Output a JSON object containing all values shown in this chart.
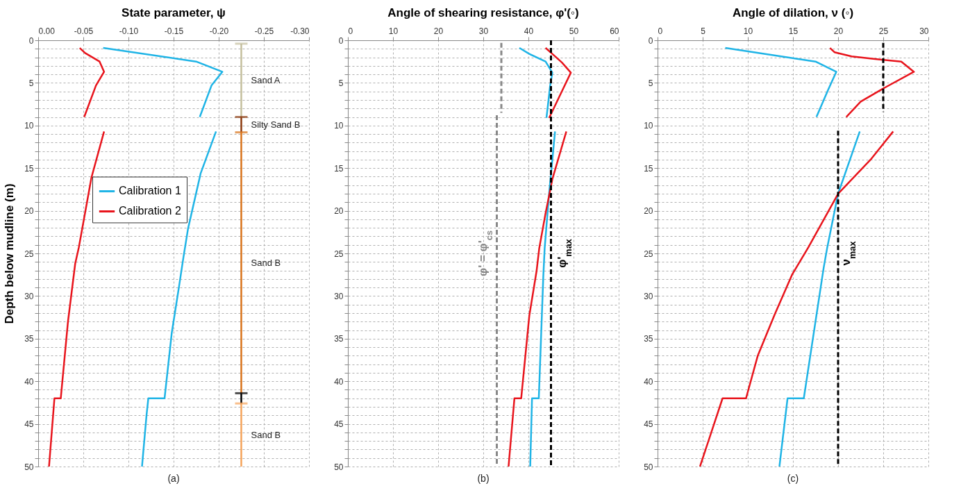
{
  "chart_data": [
    {
      "type": "line",
      "title": "State parameter, ψ",
      "ylabel": "Depth below mudline (m)",
      "xlim": [
        0,
        -0.3
      ],
      "xticks": [
        {
          "value": 0,
          "label": "0.00"
        },
        {
          "value": -0.05,
          "label": "-0.05"
        },
        {
          "value": -0.1,
          "label": "-0.10"
        },
        {
          "value": -0.15,
          "label": "-0.15"
        },
        {
          "value": -0.2,
          "label": "-0.20"
        },
        {
          "value": -0.25,
          "label": "-0.25"
        },
        {
          "value": -0.3,
          "label": "-0.30"
        }
      ],
      "ylim": [
        50,
        0
      ],
      "yticks": [
        0,
        {
          "value": 1,
          "label": null
        },
        {
          "value": 2,
          "label": null
        },
        {
          "value": 3,
          "label": null
        },
        {
          "value": 4,
          "label": null
        },
        5,
        {
          "value": 6,
          "label": null
        },
        {
          "value": 7,
          "label": null
        },
        {
          "value": 8,
          "label": null
        },
        {
          "value": 9,
          "label": null
        },
        10,
        {
          "value": 11,
          "label": null
        },
        {
          "value": 12,
          "label": null
        },
        {
          "value": 13,
          "label": null
        },
        {
          "value": 14,
          "label": null
        },
        15,
        {
          "value": 16,
          "label": null
        },
        {
          "value": 17,
          "label": null
        },
        {
          "value": 18,
          "label": null
        },
        {
          "value": 19,
          "label": null
        },
        20,
        {
          "value": 21,
          "label": null
        },
        {
          "value": 22,
          "label": null
        },
        {
          "value": 23,
          "label": null
        },
        {
          "value": 24,
          "label": null
        },
        25,
        {
          "value": 26,
          "label": null
        },
        {
          "value": 27,
          "label": null
        },
        {
          "value": 28,
          "label": null
        },
        {
          "value": 29,
          "label": null
        },
        30,
        {
          "value": 31,
          "label": null
        },
        {
          "value": 32,
          "label": null
        },
        {
          "value": 33,
          "label": null
        },
        {
          "value": 34,
          "label": null
        },
        35,
        {
          "value": 36,
          "label": null
        },
        {
          "value": 37,
          "label": null
        },
        {
          "value": 38,
          "label": null
        },
        {
          "value": 39,
          "label": null
        },
        40,
        {
          "value": 41,
          "label": null
        },
        {
          "value": 42,
          "label": null
        },
        {
          "value": 43,
          "label": null
        },
        {
          "value": 44,
          "label": null
        },
        45,
        {
          "value": 46,
          "label": null
        },
        {
          "value": 47,
          "label": null
        },
        {
          "value": 48,
          "label": null
        },
        {
          "value": 49,
          "label": null
        },
        50
      ],
      "grid": true,
      "legend": "left",
      "series": [
        {
          "name": "Calibration 1",
          "color": "#1fb4e6",
          "x": [
            -0.072,
            -0.175,
            -0.204,
            -0.192,
            -0.179,
            null,
            -0.197,
            -0.18,
            -0.166,
            -0.161,
            -0.156,
            -0.148,
            -0.14,
            -0.122,
            -0.12,
            -0.115
          ],
          "values": [
            0.9,
            2.5,
            3.7,
            5.3,
            9,
            null,
            10.7,
            15.6,
            22.1,
            25.4,
            28.9,
            34.3,
            42,
            42,
            44,
            50
          ]
        },
        {
          "name": "Calibration 2",
          "color": "#e8141c",
          "x": [
            -0.046,
            -0.052,
            -0.068,
            -0.073,
            -0.064,
            -0.051,
            null,
            -0.073,
            -0.059,
            -0.045,
            -0.041,
            -0.033,
            -0.025,
            -0.018,
            -0.012
          ],
          "values": [
            0.9,
            1.5,
            2.5,
            3.7,
            5.3,
            9,
            null,
            10.7,
            16.1,
            24.3,
            26.2,
            33,
            42,
            42,
            50
          ]
        },
        {
          "name": "Sand A",
          "color": "#c4bf9e",
          "x": [
            -0.225,
            -0.225
          ],
          "values": [
            0.4,
            9
          ]
        },
        {
          "name": "Silty Sand B",
          "color": "#8b3a0f",
          "x": [
            -0.225,
            -0.225
          ],
          "values": [
            9,
            10.8
          ]
        },
        {
          "name": "Sand B",
          "color": "#d9731a",
          "x": [
            -0.225,
            -0.225
          ],
          "values": [
            10.8,
            41.4
          ]
        },
        {
          "color": "#000000",
          "x": [
            -0.225,
            -0.225
          ],
          "values": [
            41.4,
            42.6
          ]
        },
        {
          "name": "Sand B",
          "color": "#f5a35a",
          "x": [
            -0.225,
            -0.225
          ],
          "values": [
            42.6,
            50
          ]
        }
      ],
      "annotations": [
        "(a)"
      ]
    },
    {
      "type": "line",
      "title": "Angle of shearing resistance, φ'(◦)",
      "xlim": [
        0,
        60
      ],
      "xticks": [
        0,
        10,
        20,
        30,
        40,
        50,
        60
      ],
      "ylim": [
        50,
        0
      ],
      "yticks": [
        0,
        {
          "value": 1,
          "label": null
        },
        {
          "value": 2,
          "label": null
        },
        {
          "value": 3,
          "label": null
        },
        {
          "value": 4,
          "label": null
        },
        5,
        {
          "value": 6,
          "label": null
        },
        {
          "value": 7,
          "label": null
        },
        {
          "value": 8,
          "label": null
        },
        {
          "value": 9,
          "label": null
        },
        10,
        {
          "value": 11,
          "label": null
        },
        {
          "value": 12,
          "label": null
        },
        {
          "value": 13,
          "label": null
        },
        {
          "value": 14,
          "label": null
        },
        15,
        {
          "value": 16,
          "label": null
        },
        {
          "value": 17,
          "label": null
        },
        {
          "value": 18,
          "label": null
        },
        {
          "value": 19,
          "label": null
        },
        20,
        {
          "value": 21,
          "label": null
        },
        {
          "value": 22,
          "label": null
        },
        {
          "value": 23,
          "label": null
        },
        {
          "value": 24,
          "label": null
        },
        25,
        {
          "value": 26,
          "label": null
        },
        {
          "value": 27,
          "label": null
        },
        {
          "value": 28,
          "label": null
        },
        {
          "value": 29,
          "label": null
        },
        30,
        {
          "value": 31,
          "label": null
        },
        {
          "value": 32,
          "label": null
        },
        {
          "value": 33,
          "label": null
        },
        {
          "value": 34,
          "label": null
        },
        35,
        {
          "value": 36,
          "label": null
        },
        {
          "value": 37,
          "label": null
        },
        {
          "value": 38,
          "label": null
        },
        {
          "value": 39,
          "label": null
        },
        40,
        {
          "value": 41,
          "label": null
        },
        {
          "value": 42,
          "label": null
        },
        {
          "value": 43,
          "label": null
        },
        {
          "value": 44,
          "label": null
        },
        45,
        {
          "value": 46,
          "label": null
        },
        {
          "value": 47,
          "label": null
        },
        {
          "value": 48,
          "label": null
        },
        {
          "value": 49,
          "label": null
        },
        50
      ],
      "grid": true,
      "series": [
        {
          "color": "#1fb4e6",
          "x": [
            38,
            40.2,
            43.8,
            45.3,
            44.8,
            44,
            null,
            45.9,
            44.6,
            43.6,
            43.3,
            42.3,
            40.8,
            40.4
          ],
          "values": [
            0.9,
            1.6,
            2.5,
            3.8,
            5.4,
            9.1,
            null,
            10.7,
            17.9,
            24.4,
            27.7,
            42,
            42,
            50
          ]
        },
        {
          "color": "#e8141c",
          "x": [
            43.8,
            45.3,
            47.4,
            49.4,
            47.4,
            44.6,
            null,
            48.4,
            45.3,
            43.8,
            42.4,
            41.8,
            40.2,
            38.4,
            36.9,
            35.6
          ],
          "values": [
            0.9,
            1.6,
            2.6,
            3.8,
            6,
            9.1,
            null,
            10.7,
            16.3,
            20.3,
            24.4,
            27.1,
            32.3,
            42,
            42,
            50
          ]
        },
        {
          "name": "φ' = φ'$_{cs}$",
          "color": "#888888",
          "line_style": "dashed",
          "x": [
            34,
            34,
            null,
            33,
            33
          ],
          "values": [
            0.3,
            8.5,
            null,
            8.8,
            50
          ]
        }
      ],
      "ref_lines": [
        {
          "axis": "x",
          "value": 45,
          "label": "φ'$_{max}$",
          "color": "#000000",
          "line_style": "dashed"
        }
      ],
      "annotations": [
        "(b)"
      ]
    },
    {
      "type": "line",
      "title": "Angle of dilation, ν (◦)",
      "xlim": [
        0,
        30
      ],
      "xticks": [
        0,
        5,
        10,
        15,
        20,
        25,
        30
      ],
      "ylim": [
        50,
        0
      ],
      "yticks": [
        0,
        {
          "value": 1,
          "label": null
        },
        {
          "value": 2,
          "label": null
        },
        {
          "value": 3,
          "label": null
        },
        {
          "value": 4,
          "label": null
        },
        5,
        {
          "value": 6,
          "label": null
        },
        {
          "value": 7,
          "label": null
        },
        {
          "value": 8,
          "label": null
        },
        {
          "value": 9,
          "label": null
        },
        10,
        {
          "value": 11,
          "label": null
        },
        {
          "value": 12,
          "label": null
        },
        {
          "value": 13,
          "label": null
        },
        {
          "value": 14,
          "label": null
        },
        15,
        {
          "value": 16,
          "label": null
        },
        {
          "value": 17,
          "label": null
        },
        {
          "value": 18,
          "label": null
        },
        {
          "value": 19,
          "label": null
        },
        20,
        {
          "value": 21,
          "label": null
        },
        {
          "value": 22,
          "label": null
        },
        {
          "value": 23,
          "label": null
        },
        {
          "value": 24,
          "label": null
        },
        25,
        {
          "value": 26,
          "label": null
        },
        {
          "value": 27,
          "label": null
        },
        {
          "value": 28,
          "label": null
        },
        {
          "value": 29,
          "label": null
        },
        30,
        {
          "value": 31,
          "label": null
        },
        {
          "value": 32,
          "label": null
        },
        {
          "value": 33,
          "label": null
        },
        {
          "value": 34,
          "label": null
        },
        35,
        {
          "value": 36,
          "label": null
        },
        {
          "value": 37,
          "label": null
        },
        {
          "value": 38,
          "label": null
        },
        {
          "value": 39,
          "label": null
        },
        40,
        {
          "value": 41,
          "label": null
        },
        {
          "value": 42,
          "label": null
        },
        {
          "value": 43,
          "label": null
        },
        {
          "value": 44,
          "label": null
        },
        45,
        {
          "value": 46,
          "label": null
        },
        {
          "value": 47,
          "label": null
        },
        {
          "value": 48,
          "label": null
        },
        {
          "value": 49,
          "label": null
        },
        50
      ],
      "grid": true,
      "series": [
        {
          "color": "#1fb4e6",
          "x": [
            7.5,
            17.5,
            19.8,
            18.9,
            17.6,
            null,
            22.4,
            20,
            18.8,
            18.4,
            16.2,
            14.4,
            13.5
          ],
          "values": [
            0.9,
            2.5,
            3.7,
            5.8,
            9,
            null,
            10.7,
            18,
            24.3,
            26.7,
            42,
            42,
            50
          ]
        },
        {
          "color": "#e8141c",
          "x": [
            19.1,
            19.6,
            21.5,
            24.1,
            27,
            28.4,
            25.1,
            22.5,
            20.9,
            null,
            26.1,
            23.6,
            20,
            16.7,
            14.9,
            13,
            11.1,
            9.8,
            7.2,
            4.7
          ],
          "values": [
            0.9,
            1.4,
            1.9,
            2.2,
            2.5,
            3.7,
            5.6,
            7.2,
            9,
            null,
            10.7,
            14,
            18,
            24.3,
            27.5,
            32.1,
            37,
            42,
            42,
            50
          ]
        },
        {
          "name": "ν$_{max}$",
          "color": "#000000",
          "line_style": "dashed",
          "x": [
            25,
            25,
            null,
            20,
            20
          ],
          "values": [
            0.3,
            8.4,
            null,
            10.6,
            50
          ]
        }
      ],
      "annotations": [
        "(c)"
      ]
    }
  ]
}
